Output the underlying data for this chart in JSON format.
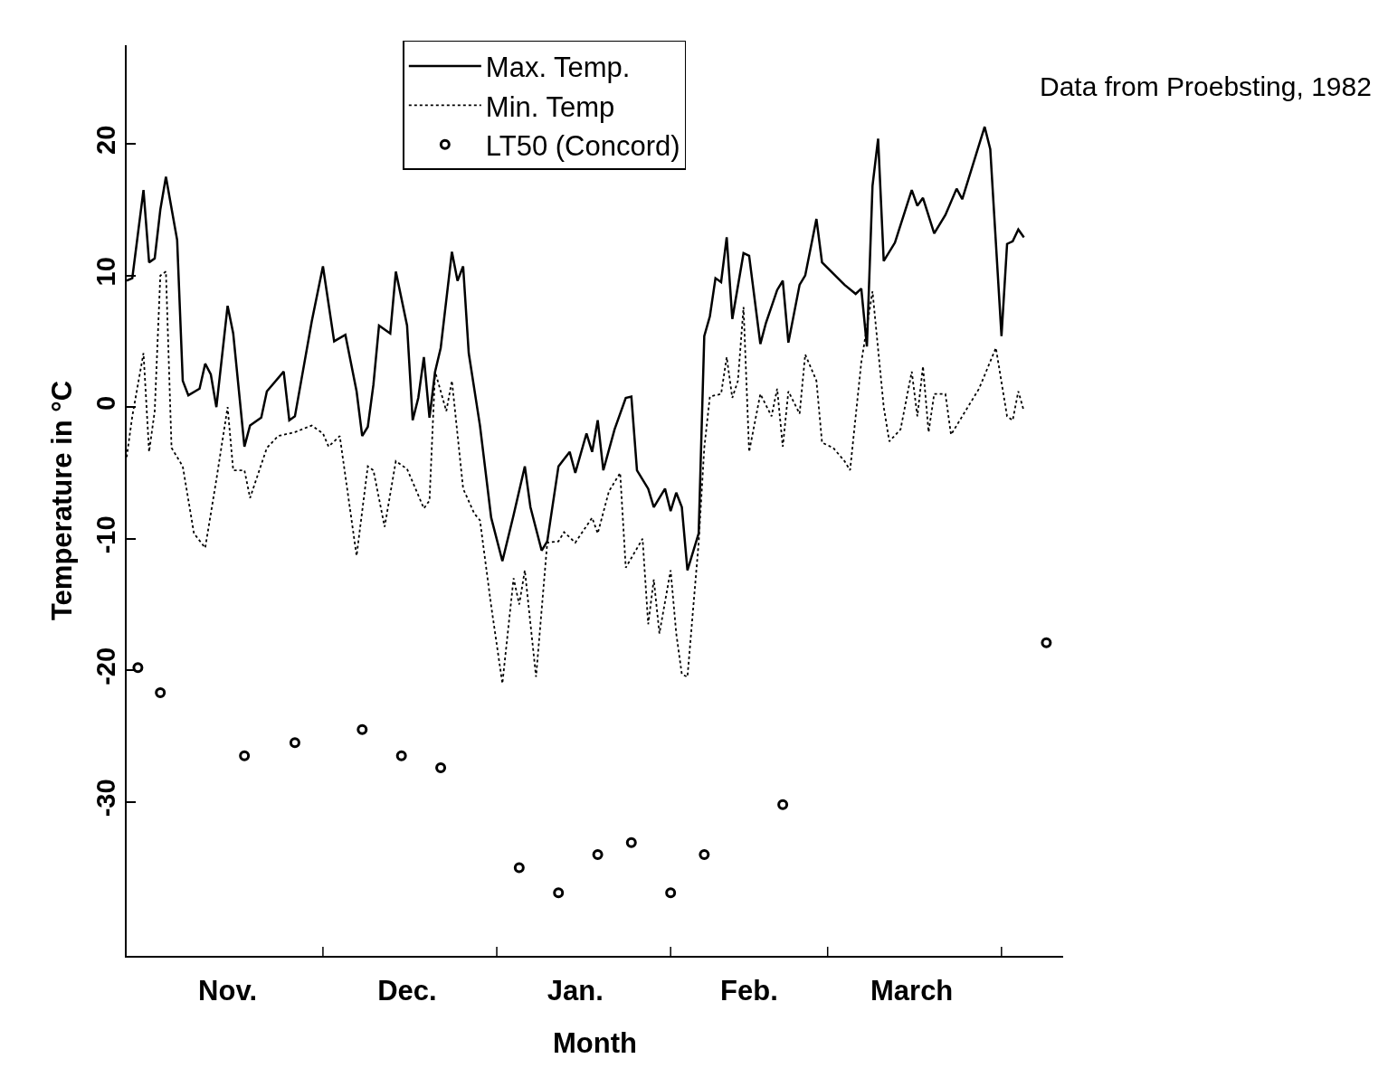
{
  "chart_data": {
    "type": "line",
    "xlabel": "Month",
    "ylabel": "Temperature in °C",
    "annotations": [
      "Data from Proebsting, 1982"
    ],
    "xlim": [
      "1981-10-27",
      "1982-04-12"
    ],
    "ylim": [
      -41.7,
      27.5
    ],
    "xticks": [
      {
        "value": "1981-11-14",
        "label": "Nov."
      },
      {
        "value": "1981-12-01",
        "label": null
      },
      {
        "value": "1981-12-16",
        "label": "Dec."
      },
      {
        "value": "1982-01-01",
        "label": null
      },
      {
        "value": "1982-01-15",
        "label": "Jan."
      },
      {
        "value": "1982-02-01",
        "label": null
      },
      {
        "value": "1982-02-15",
        "label": "Feb."
      },
      {
        "value": "1982-03-01",
        "label": null
      },
      {
        "value": "1982-03-16",
        "label": "March"
      },
      {
        "value": "1982-04-01",
        "label": null
      }
    ],
    "yticks": [
      -30,
      -20,
      -10,
      0,
      10,
      20
    ],
    "legend": "top",
    "series": [
      {
        "name": "Max. Temp.",
        "line_style": "solid",
        "marker": "none",
        "color": "#000000",
        "x": [
          "1981-10-27",
          "1981-10-28",
          "1981-10-30",
          "1981-10-31",
          "1981-11-01",
          "1981-11-02",
          "1981-11-03",
          "1981-11-05",
          "1981-11-06",
          "1981-11-07",
          "1981-11-09",
          "1981-11-10",
          "1981-11-11",
          "1981-11-12",
          "1981-11-14",
          "1981-11-15",
          "1981-11-17",
          "1981-11-18",
          "1981-11-20",
          "1981-11-21",
          "1981-11-24",
          "1981-11-25",
          "1981-11-26",
          "1981-11-29",
          "1981-12-01",
          "1981-12-03",
          "1981-12-05",
          "1981-12-07",
          "1981-12-08",
          "1981-12-09",
          "1981-12-10",
          "1981-12-11",
          "1981-12-13",
          "1981-12-14",
          "1981-12-16",
          "1981-12-17",
          "1981-12-18",
          "1981-12-19",
          "1981-12-20",
          "1981-12-21",
          "1981-12-22",
          "1981-12-24",
          "1981-12-25",
          "1981-12-26",
          "1981-12-27",
          "1981-12-29",
          "1981-12-31",
          "1982-01-02",
          "1982-01-04",
          "1982-01-06",
          "1982-01-07",
          "1982-01-09",
          "1982-01-10",
          "1982-01-12",
          "1982-01-14",
          "1982-01-15",
          "1982-01-17",
          "1982-01-18",
          "1982-01-19",
          "1982-01-20",
          "1982-01-22",
          "1982-01-24",
          "1982-01-25",
          "1982-01-26",
          "1982-01-28",
          "1982-01-29",
          "1982-01-31",
          "1982-02-01",
          "1982-02-02",
          "1982-02-03",
          "1982-02-04",
          "1982-02-06",
          "1982-02-07",
          "1982-02-08",
          "1982-02-09",
          "1982-02-10",
          "1982-02-11",
          "1982-02-12",
          "1982-02-14",
          "1982-02-15",
          "1982-02-17",
          "1982-02-18",
          "1982-02-20",
          "1982-02-21",
          "1982-02-22",
          "1982-02-24",
          "1982-02-25",
          "1982-02-27",
          "1982-02-28",
          "1982-03-04",
          "1982-03-06",
          "1982-03-07",
          "1982-03-08",
          "1982-03-09",
          "1982-03-10",
          "1982-03-11",
          "1982-03-13",
          "1982-03-16",
          "1982-03-17",
          "1982-03-18",
          "1982-03-20",
          "1982-03-22",
          "1982-03-24",
          "1982-03-25",
          "1982-03-29",
          "1982-03-30",
          "1982-04-01",
          "1982-04-02",
          "1982-04-03",
          "1982-04-04",
          "1982-04-05"
        ],
        "values": [
          9.6,
          9.8,
          16.5,
          11,
          11.3,
          15,
          17.5,
          12.7,
          2,
          0.9,
          1.4,
          3.3,
          2.5,
          0,
          7.7,
          5.6,
          -3,
          -1.4,
          -0.8,
          1.2,
          2.7,
          -1,
          -0.7,
          6.5,
          10.7,
          5,
          5.5,
          1.2,
          -2.2,
          -1.5,
          1.7,
          6.2,
          5.6,
          10.3,
          6.2,
          -1,
          0.7,
          3.8,
          -0.8,
          2.7,
          4.5,
          11.8,
          9.6,
          10.7,
          4.1,
          -1.4,
          -8.4,
          -11.7,
          -8.2,
          -4.5,
          -7.6,
          -10.9,
          -10.2,
          -4.5,
          -3.4,
          -5,
          -2,
          -3.4,
          -1,
          -4.8,
          -1.7,
          0.7,
          0.8,
          -4.8,
          -6.2,
          -7.6,
          -6.2,
          -7.9,
          -6.5,
          -7.6,
          -12.4,
          -9.6,
          5.4,
          6.9,
          9.8,
          9.5,
          12.9,
          6.7,
          11.7,
          11.5,
          4.8,
          6.4,
          8.9,
          9.6,
          4.9,
          9.3,
          10,
          14.3,
          11,
          9.3,
          8.6,
          9,
          4.6,
          16.8,
          20.4,
          11.1,
          12.5,
          16.5,
          15.3,
          15.9,
          13.2,
          14.6,
          16.6,
          15.8,
          21.3,
          19.6,
          5.4,
          12.4,
          12.6,
          13.5,
          12.9
        ]
      },
      {
        "name": "Min. Temp",
        "line_style": "dotted",
        "marker": "none",
        "color": "#000000",
        "x": [
          "1981-10-27",
          "1981-10-28",
          "1981-10-30",
          "1981-10-31",
          "1981-11-01",
          "1981-11-02",
          "1981-11-03",
          "1981-11-04",
          "1981-11-06",
          "1981-11-08",
          "1981-11-10",
          "1981-11-12",
          "1981-11-14",
          "1981-11-15",
          "1981-11-17",
          "1981-11-18",
          "1981-11-21",
          "1981-11-23",
          "1981-11-26",
          "1981-11-29",
          "1981-12-01",
          "1981-12-02",
          "1981-12-04",
          "1981-12-07",
          "1981-12-09",
          "1981-12-10",
          "1981-12-12",
          "1981-12-14",
          "1981-12-16",
          "1981-12-19",
          "1981-12-20",
          "1981-12-21",
          "1981-12-23",
          "1981-12-24",
          "1981-12-26",
          "1981-12-28",
          "1981-12-29",
          "1981-12-31",
          "1982-01-02",
          "1982-01-04",
          "1982-01-05",
          "1982-01-06",
          "1982-01-08",
          "1982-01-10",
          "1982-01-12",
          "1982-01-13",
          "1982-01-15",
          "1982-01-18",
          "1982-01-19",
          "1982-01-21",
          "1982-01-23",
          "1982-01-24",
          "1982-01-27",
          "1982-01-28",
          "1982-01-29",
          "1982-01-30",
          "1982-02-01",
          "1982-02-02",
          "1982-02-03",
          "1982-02-04",
          "1982-02-06",
          "1982-02-07",
          "1982-02-08",
          "1982-02-10",
          "1982-02-11",
          "1982-02-12",
          "1982-02-13",
          "1982-02-14",
          "1982-02-15",
          "1982-02-17",
          "1982-02-19",
          "1982-02-20",
          "1982-02-21",
          "1982-02-22",
          "1982-02-24",
          "1982-02-25",
          "1982-02-27",
          "1982-02-28",
          "1982-03-02",
          "1982-03-04",
          "1982-03-05",
          "1982-03-07",
          "1982-03-09",
          "1982-03-11",
          "1982-03-12",
          "1982-03-14",
          "1982-03-16",
          "1982-03-17",
          "1982-03-18",
          "1982-03-19",
          "1982-03-20",
          "1982-03-22",
          "1982-03-23",
          "1982-03-25",
          "1982-03-28",
          "1982-03-31",
          "1982-04-02",
          "1982-04-03",
          "1982-04-04",
          "1982-04-05"
        ],
        "values": [
          -3.8,
          -0.7,
          4.1,
          -3.4,
          -0.3,
          10,
          10.3,
          -3.1,
          -4.5,
          -9.6,
          -10.7,
          -5.5,
          0,
          -4.8,
          -4.8,
          -6.9,
          -3.1,
          -2.2,
          -1.9,
          -1.4,
          -2,
          -3,
          -2.2,
          -11.3,
          -4.5,
          -4.8,
          -9.1,
          -4.1,
          -4.7,
          -7.7,
          -7.1,
          2.7,
          -0.3,
          2,
          -6.2,
          -8.1,
          -8.6,
          -15.1,
          -21,
          -13,
          -15,
          -12.4,
          -20.5,
          -10.3,
          -10.2,
          -9.5,
          -10.3,
          -8.4,
          -9.6,
          -6.4,
          -5,
          -12.2,
          -10,
          -16.5,
          -13.1,
          -17.2,
          -12.4,
          -17.2,
          -20.3,
          -20.5,
          -10.3,
          -3.1,
          0.8,
          1,
          3.8,
          0.7,
          2,
          7.6,
          -3.4,
          1,
          -0.7,
          1.4,
          -3,
          1.2,
          -0.5,
          4,
          2,
          -2.7,
          -3.1,
          -4.1,
          -4.8,
          3.4,
          8.8,
          0,
          -2.6,
          -1.7,
          2.7,
          -0.7,
          3.1,
          -1.9,
          1,
          1,
          -2.1,
          -0.7,
          1.4,
          4.5,
          -0.7,
          -1,
          1.2,
          -0.3
        ]
      },
      {
        "name": "LT50 (Concord)",
        "type": "scatter",
        "marker": "circle",
        "color": "#000000",
        "x": [
          "1981-10-29",
          "1981-11-02",
          "1981-11-17",
          "1981-11-26",
          "1981-12-08",
          "1981-12-15",
          "1981-12-22",
          "1982-01-05",
          "1982-01-12",
          "1982-01-19",
          "1982-01-25",
          "1982-02-01",
          "1982-02-07",
          "1982-02-21",
          "1982-04-09"
        ],
        "values": [
          -19.8,
          -21.7,
          -26.5,
          -25.5,
          -24.5,
          -26.5,
          -27.4,
          -35,
          -36.9,
          -34,
          -33.1,
          -36.9,
          -34,
          -30.2,
          -17.9
        ]
      }
    ]
  }
}
